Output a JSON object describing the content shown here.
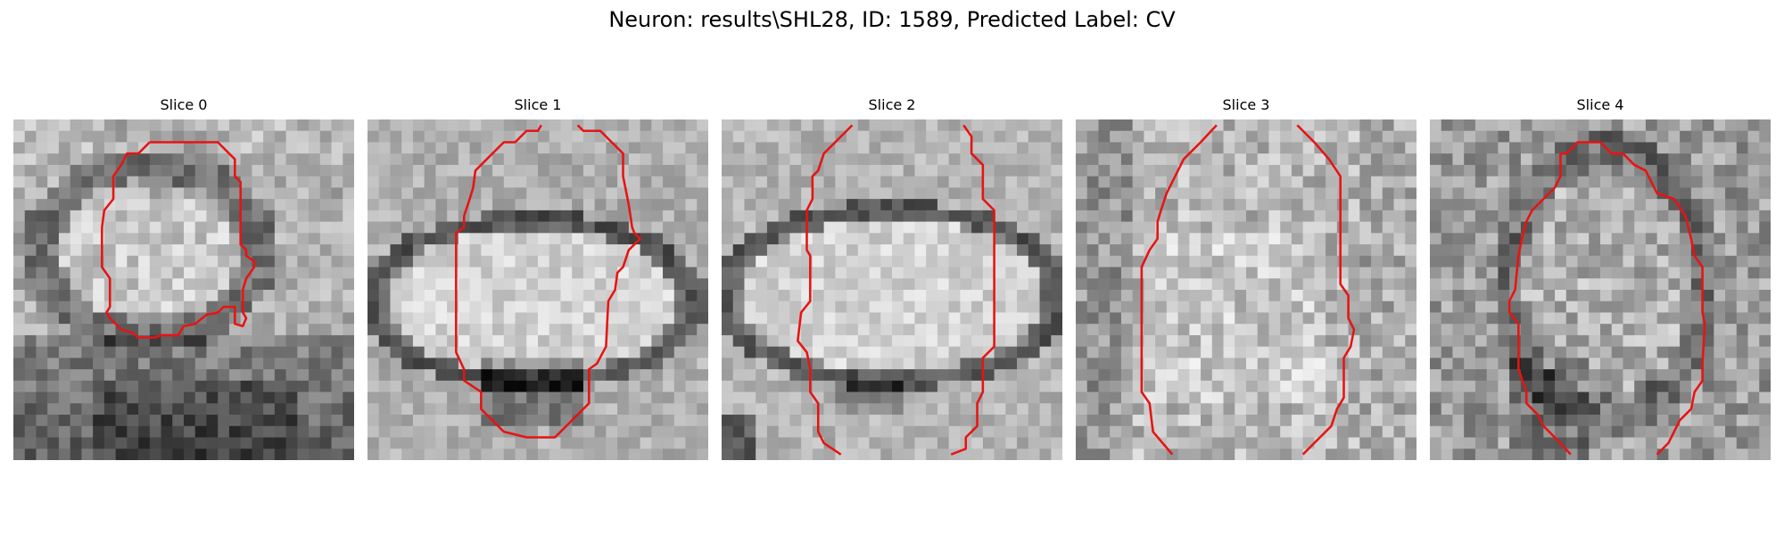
{
  "figure": {
    "title": "Neuron: results\\SHL28, ID: 1589, Predicted Label: CV"
  },
  "panels": [
    {
      "title": "Slice 0",
      "contour_color": "#e81313"
    },
    {
      "title": "Slice 1",
      "contour_color": "#e81313"
    },
    {
      "title": "Slice 2",
      "contour_color": "#e81313"
    },
    {
      "title": "Slice 3",
      "contour_color": "#e81313"
    },
    {
      "title": "Slice 4",
      "contour_color": "#e81313"
    }
  ]
}
